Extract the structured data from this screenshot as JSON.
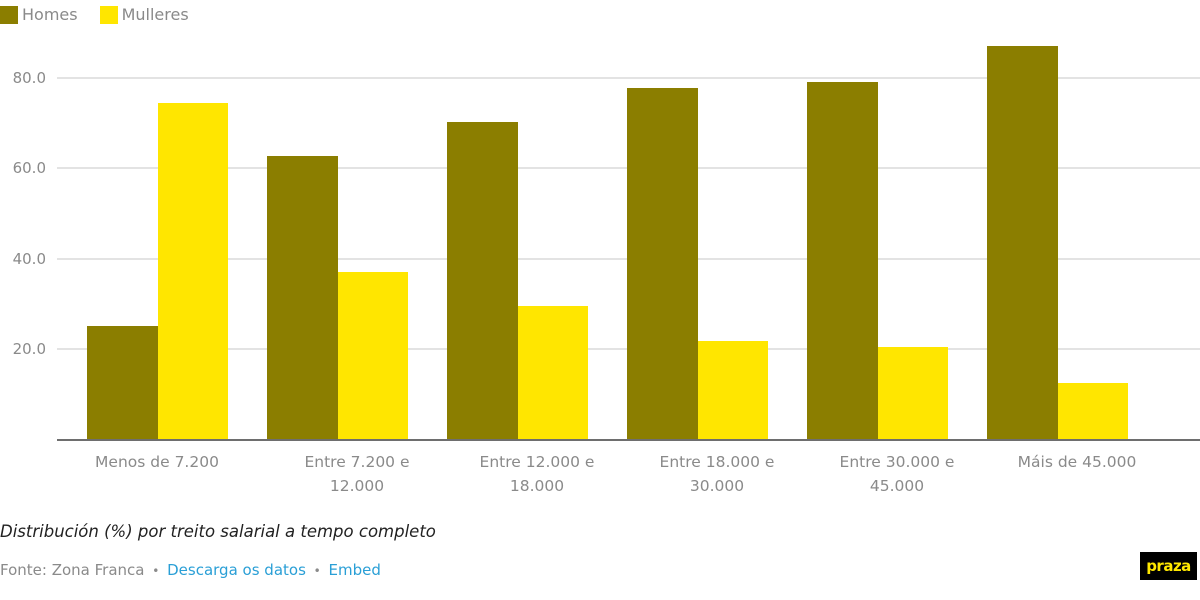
{
  "legend": [
    {
      "label": "Homes",
      "color": "#8b7e00"
    },
    {
      "label": "Mulleres",
      "color": "#ffe600"
    }
  ],
  "axis": {
    "y_ticks": [
      "80.0",
      "60.0",
      "40.0",
      "20.0"
    ]
  },
  "categories": [
    {
      "line1": "Menos de 7.200",
      "line2": ""
    },
    {
      "line1": "Entre 7.200 e",
      "line2": "12.000"
    },
    {
      "line1": "Entre 12.000 e",
      "line2": "18.000"
    },
    {
      "line1": "Entre 18.000 e",
      "line2": "30.000"
    },
    {
      "line1": "Entre 30.000 e",
      "line2": "45.000"
    },
    {
      "line1": "Máis de 45.000",
      "line2": ""
    }
  ],
  "subtitle": "Distribución (%) por treito salarial a tempo completo",
  "footer": {
    "source": "Fonte: Zona Franca",
    "separator": "•",
    "download_link": "Descarga os datos",
    "embed_link": "Embed"
  },
  "logo": {
    "text": "praza"
  },
  "chart_data": {
    "type": "bar",
    "title": "",
    "subtitle": "Distribución (%) por treito salarial a tempo completo",
    "xlabel": "",
    "ylabel": "",
    "categories": [
      "Menos de 7.200",
      "Entre 7.200 e 12.000",
      "Entre 12.000 e 18.000",
      "Entre 18.000 e 30.000",
      "Entre 30.000 e 45.000",
      "Máis de 45.000"
    ],
    "series": [
      {
        "name": "Homes",
        "color": "#8b7e00",
        "values": [
          25.3,
          62.8,
          70.4,
          78.0,
          79.4,
          87.3
        ]
      },
      {
        "name": "Mulleres",
        "color": "#ffe600",
        "values": [
          74.7,
          37.2,
          29.6,
          22.0,
          20.6,
          12.7
        ]
      }
    ],
    "y_ticks": [
      20,
      40,
      60,
      80
    ],
    "ylim": [
      0,
      88
    ],
    "grid": true,
    "legend_position": "top-left",
    "source": "Fonte: Zona Franca"
  }
}
